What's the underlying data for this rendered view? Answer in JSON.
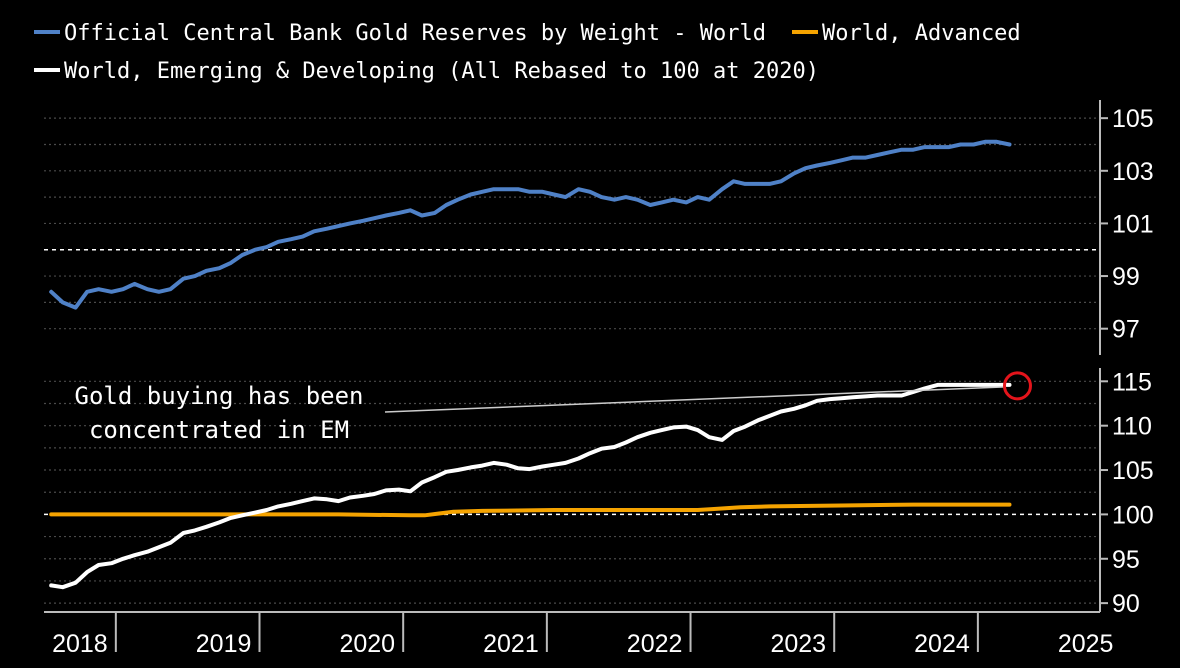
{
  "colors": {
    "background": "#000000",
    "world": "#4f81c7",
    "advanced": "#f5a300",
    "emerging": "#ffffff",
    "grid": "#4a4a4a",
    "baseline": "#ffffff",
    "highlight": "#e3141b"
  },
  "chart_data": [
    {
      "type": "line",
      "panel": "top",
      "legend": [
        {
          "series": "Official Central Bank Gold Reserves by Weight - World",
          "color": "#4f81c7"
        },
        {
          "series": "World, Advanced",
          "color": "#f5a300"
        },
        {
          "series": "World, Emerging & Developing (All Rebased to 100 at 2020)",
          "color": "#ffffff"
        }
      ],
      "ylim": [
        96,
        105.5
      ],
      "yticks": [
        "105",
        "103",
        "101",
        "99",
        "97"
      ],
      "ytick_values": [
        105,
        103,
        101,
        99,
        97
      ],
      "baseline": 100,
      "grid": true,
      "series": [
        {
          "name": "Official Central Bank Gold Reserves by Weight - World",
          "color": "#4f81c7",
          "x": [
            2018.0,
            2018.08,
            2018.17,
            2018.25,
            2018.33,
            2018.42,
            2018.5,
            2018.58,
            2018.67,
            2018.75,
            2018.83,
            2018.92,
            2019.0,
            2019.08,
            2019.17,
            2019.25,
            2019.33,
            2019.42,
            2019.5,
            2019.58,
            2019.67,
            2019.75,
            2019.83,
            2019.92,
            2020.0,
            2020.08,
            2020.17,
            2020.25,
            2020.33,
            2020.42,
            2020.5,
            2020.58,
            2020.67,
            2020.75,
            2020.83,
            2020.92,
            2021.0,
            2021.08,
            2021.17,
            2021.25,
            2021.33,
            2021.42,
            2021.5,
            2021.58,
            2021.67,
            2021.75,
            2021.83,
            2021.92,
            2022.0,
            2022.08,
            2022.17,
            2022.25,
            2022.33,
            2022.42,
            2022.5,
            2022.58,
            2022.67,
            2022.75,
            2022.83,
            2022.92,
            2023.0,
            2023.08,
            2023.17,
            2023.25,
            2023.33,
            2023.42,
            2023.5,
            2023.58,
            2023.67,
            2023.75,
            2023.83,
            2023.92,
            2024.0,
            2024.08,
            2024.17,
            2024.25,
            2024.33,
            2024.42,
            2024.5,
            2024.58,
            2024.67
          ],
          "values": [
            98.4,
            98.0,
            97.8,
            98.4,
            98.5,
            98.4,
            98.5,
            98.7,
            98.5,
            98.4,
            98.5,
            98.9,
            99.0,
            99.2,
            99.3,
            99.5,
            99.8,
            100.0,
            100.1,
            100.3,
            100.4,
            100.5,
            100.7,
            100.8,
            100.9,
            101.0,
            101.1,
            101.2,
            101.3,
            101.4,
            101.5,
            101.3,
            101.4,
            101.7,
            101.9,
            102.1,
            102.2,
            102.3,
            102.3,
            102.3,
            102.2,
            102.2,
            102.1,
            102.0,
            102.3,
            102.2,
            102.0,
            101.9,
            102.0,
            101.9,
            101.7,
            101.8,
            101.9,
            101.8,
            102.0,
            101.9,
            102.3,
            102.6,
            102.5,
            102.5,
            102.5,
            102.6,
            102.9,
            103.1,
            103.2,
            103.3,
            103.4,
            103.5,
            103.5,
            103.6,
            103.7,
            103.8,
            103.8,
            103.9,
            103.9,
            103.9,
            104.0,
            104.0,
            104.1,
            104.1,
            104.0
          ]
        }
      ]
    },
    {
      "type": "line",
      "panel": "bottom",
      "ylim": [
        89,
        116.5
      ],
      "yticks": [
        "115",
        "110",
        "105",
        "100",
        "95",
        "90"
      ],
      "ytick_values": [
        115,
        110,
        105,
        100,
        95,
        90
      ],
      "baseline": 100,
      "grid": true,
      "xlim": [
        2017.95,
        2025.3
      ],
      "xticks": [
        "2018",
        "2019",
        "2020",
        "2021",
        "2022",
        "2023",
        "2024",
        "2025"
      ],
      "xtick_values": [
        2018.2,
        2019.2,
        2020.2,
        2021.2,
        2022.2,
        2023.2,
        2024.2,
        2025.2
      ],
      "xtick_dividers": [
        2018.45,
        2019.45,
        2020.45,
        2021.45,
        2022.45,
        2023.45,
        2024.45
      ],
      "annotations": [
        {
          "text": [
            "Gold buying has been",
            "concentrated in EM"
          ],
          "target": {
            "x": 2024.67,
            "y": 114.6
          }
        }
      ],
      "series": [
        {
          "name": "World, Advanced",
          "color": "#f5a300",
          "x": [
            2018.0,
            2018.5,
            2019.0,
            2019.5,
            2020.0,
            2020.5,
            2020.6,
            2020.7,
            2020.8,
            2021.0,
            2021.5,
            2022.0,
            2022.5,
            2022.6,
            2022.8,
            2023.0,
            2023.5,
            2024.0,
            2024.5,
            2024.67
          ],
          "values": [
            100.0,
            100.0,
            100.0,
            100.0,
            100.0,
            99.9,
            99.9,
            100.1,
            100.3,
            100.4,
            100.5,
            100.5,
            100.5,
            100.6,
            100.8,
            100.9,
            101.0,
            101.1,
            101.1,
            101.1
          ]
        },
        {
          "name": "World, Emerging & Developing (All Rebased to 100 at 2020)",
          "color": "#ffffff",
          "x": [
            2018.0,
            2018.08,
            2018.17,
            2018.25,
            2018.33,
            2018.42,
            2018.5,
            2018.58,
            2018.67,
            2018.75,
            2018.83,
            2018.92,
            2019.0,
            2019.08,
            2019.17,
            2019.25,
            2019.33,
            2019.42,
            2019.5,
            2019.58,
            2019.67,
            2019.75,
            2019.83,
            2019.92,
            2020.0,
            2020.08,
            2020.17,
            2020.25,
            2020.33,
            2020.42,
            2020.5,
            2020.58,
            2020.67,
            2020.75,
            2020.83,
            2020.92,
            2021.0,
            2021.08,
            2021.17,
            2021.25,
            2021.33,
            2021.42,
            2021.5,
            2021.58,
            2021.67,
            2021.75,
            2021.83,
            2021.92,
            2022.0,
            2022.08,
            2022.17,
            2022.25,
            2022.33,
            2022.42,
            2022.5,
            2022.58,
            2022.67,
            2022.75,
            2022.83,
            2022.92,
            2023.0,
            2023.08,
            2023.17,
            2023.25,
            2023.33,
            2023.42,
            2023.5,
            2023.58,
            2023.67,
            2023.75,
            2023.83,
            2023.92,
            2024.0,
            2024.08,
            2024.17,
            2024.25,
            2024.33,
            2024.42,
            2024.5,
            2024.58,
            2024.67
          ],
          "values": [
            92.0,
            91.8,
            92.3,
            93.5,
            94.3,
            94.5,
            95.0,
            95.4,
            95.8,
            96.3,
            96.8,
            97.9,
            98.2,
            98.6,
            99.1,
            99.6,
            99.9,
            100.2,
            100.5,
            100.9,
            101.2,
            101.5,
            101.8,
            101.7,
            101.5,
            101.9,
            102.1,
            102.3,
            102.7,
            102.8,
            102.6,
            103.6,
            104.2,
            104.8,
            105.0,
            105.3,
            105.5,
            105.8,
            105.6,
            105.2,
            105.1,
            105.4,
            105.6,
            105.8,
            106.3,
            106.9,
            107.4,
            107.6,
            108.1,
            108.7,
            109.2,
            109.5,
            109.8,
            109.9,
            109.5,
            108.7,
            108.4,
            109.4,
            109.9,
            110.6,
            111.1,
            111.6,
            111.9,
            112.3,
            112.8,
            113.0,
            113.1,
            113.2,
            113.3,
            113.4,
            113.4,
            113.4,
            113.8,
            114.2,
            114.6,
            114.6,
            114.6,
            114.6,
            114.6,
            114.6,
            114.6
          ]
        }
      ]
    }
  ]
}
